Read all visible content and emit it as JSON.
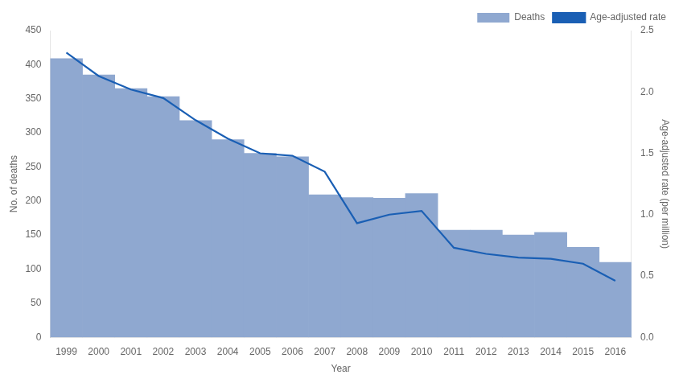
{
  "chart_data": {
    "type": "bar",
    "categories": [
      "1999",
      "2000",
      "2001",
      "2002",
      "2003",
      "2004",
      "2005",
      "2006",
      "2007",
      "2008",
      "2009",
      "2010",
      "2011",
      "2012",
      "2013",
      "2014",
      "2015",
      "2016"
    ],
    "xlabel": "Year",
    "ylabel": "No. of deaths",
    "y2label": "Age-adjusted rate (per million)",
    "series": [
      {
        "name": "Deaths",
        "type": "bar",
        "color": "#8fa8d0",
        "values": [
          409,
          385,
          365,
          353,
          318,
          290,
          270,
          265,
          209,
          205,
          204,
          211,
          157,
          157,
          150,
          154,
          132,
          110
        ]
      },
      {
        "name": "Age-adjusted rate",
        "type": "line",
        "color": "#1a5fb4",
        "axis": "y2",
        "values": [
          2.32,
          2.13,
          2.02,
          1.95,
          1.77,
          1.62,
          1.5,
          1.48,
          1.35,
          0.93,
          1.0,
          1.03,
          0.73,
          0.68,
          0.65,
          0.64,
          0.6,
          0.46
        ]
      }
    ],
    "ylim": [
      0,
      450
    ],
    "yticks": [
      0,
      50,
      100,
      150,
      200,
      250,
      300,
      350,
      400,
      450
    ],
    "y2lim": [
      0,
      2.5
    ],
    "y2ticks": [
      {
        "value": 0,
        "label": "0.0"
      },
      {
        "value": 0.5,
        "label": "0.5"
      },
      {
        "value": 1.0,
        "label": "1.0"
      },
      {
        "value": 1.5,
        "label": "1.5"
      },
      {
        "value": 2.0,
        "label": "2.0"
      },
      {
        "value": 2.5,
        "label": "2.5"
      }
    ],
    "legend": "upper right",
    "grid": false
  }
}
